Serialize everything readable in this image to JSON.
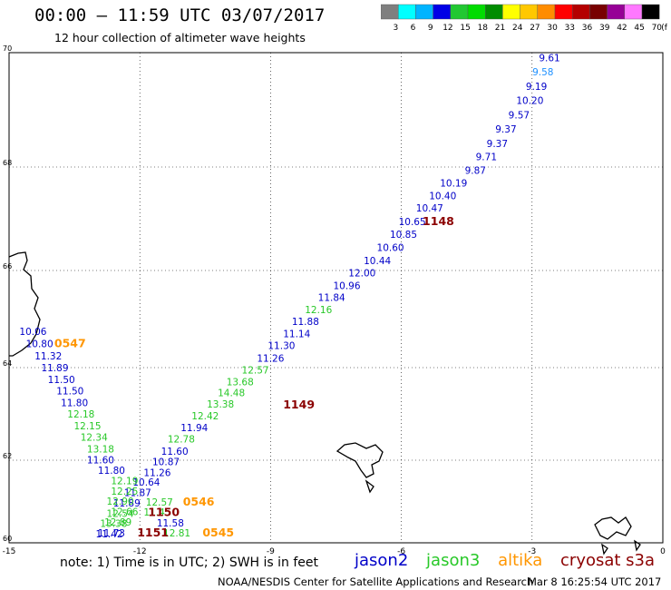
{
  "header": {
    "title": "00:00 – 11:59 UTC 03/07/2017",
    "subtitle": "12 hour collection of altimeter wave heights"
  },
  "color_scale": {
    "labels": [
      "3",
      "6",
      "9",
      "12",
      "15",
      "18",
      "21",
      "24",
      "27",
      "30",
      "33",
      "36",
      "39",
      "42",
      "45",
      "70"
    ],
    "unit": "(ft)",
    "colors": [
      "#7f7f7f",
      "#00ffff",
      "#00b4ff",
      "#0000e6",
      "#22c832",
      "#00dc00",
      "#008c00",
      "#ffff00",
      "#ffc800",
      "#ff8c00",
      "#ff0000",
      "#b40000",
      "#780000",
      "#960096",
      "#ff78ff",
      "#000000"
    ]
  },
  "map": {
    "lon_min": -15,
    "lon_max": 0,
    "lat_min": 60,
    "lat_max": 70,
    "lon_ticks": [
      "-15",
      "-12",
      "-9",
      "-6",
      "-3",
      "0"
    ],
    "lat_ticks": [
      "60",
      "62",
      "64",
      "66",
      "68",
      "70"
    ],
    "series_colors": {
      "jason2": "#0000c8",
      "jason3": "#28c828",
      "altika": "#ff9600",
      "cryosat": "#8b0000",
      "light": "#1e90ff"
    },
    "tracks": [
      {
        "satellite": "jason2",
        "labels": [
          {
            "text": "9.61",
            "lon": -2.6,
            "lat": 69.85,
            "c": "jason2"
          },
          {
            "text": "9.58",
            "lon": -2.75,
            "lat": 69.6,
            "c": "light"
          },
          {
            "text": "9.19",
            "lon": -2.9,
            "lat": 69.35,
            "c": "jason2"
          },
          {
            "text": "10.20",
            "lon": -3.05,
            "lat": 69.1,
            "c": "jason2"
          },
          {
            "text": "9.57",
            "lon": -3.3,
            "lat": 68.85,
            "c": "jason2"
          },
          {
            "text": "9.37",
            "lon": -3.6,
            "lat": 68.6,
            "c": "jason2"
          },
          {
            "text": "9.37",
            "lon": -3.8,
            "lat": 68.35,
            "c": "jason2"
          },
          {
            "text": "9.71",
            "lon": -4.05,
            "lat": 68.12,
            "c": "jason2"
          },
          {
            "text": "9.87",
            "lon": -4.3,
            "lat": 67.87,
            "c": "jason2"
          },
          {
            "text": "10.19",
            "lon": -4.8,
            "lat": 67.62,
            "c": "jason2"
          },
          {
            "text": "10.40",
            "lon": -5.05,
            "lat": 67.38,
            "c": "jason2"
          },
          {
            "text": "10.47",
            "lon": -5.35,
            "lat": 67.14,
            "c": "jason2"
          },
          {
            "text": "10.65",
            "lon": -5.75,
            "lat": 66.88,
            "c": "jason2"
          },
          {
            "text": "10.85",
            "lon": -5.95,
            "lat": 66.63,
            "c": "jason2"
          },
          {
            "text": "10.60",
            "lon": -6.25,
            "lat": 66.38,
            "c": "jason2"
          },
          {
            "text": "10.44",
            "lon": -6.55,
            "lat": 66.12,
            "c": "jason2"
          },
          {
            "text": "12.00",
            "lon": -6.9,
            "lat": 65.88,
            "c": "jason2"
          },
          {
            "text": "10.96",
            "lon": -7.25,
            "lat": 65.62,
            "c": "jason2"
          },
          {
            "text": "11.84",
            "lon": -7.6,
            "lat": 65.37,
            "c": "jason2"
          },
          {
            "text": "12.16",
            "lon": -7.9,
            "lat": 65.12,
            "c": "jason3"
          },
          {
            "text": "11.88",
            "lon": -8.2,
            "lat": 64.88,
            "c": "jason2"
          },
          {
            "text": "11.14",
            "lon": -8.4,
            "lat": 64.63,
            "c": "jason2"
          },
          {
            "text": "11.30",
            "lon": -8.75,
            "lat": 64.38,
            "c": "jason2"
          },
          {
            "text": "11.26",
            "lon": -9.0,
            "lat": 64.12,
            "c": "jason2"
          },
          {
            "text": "12.57",
            "lon": -9.35,
            "lat": 63.87,
            "c": "jason3"
          },
          {
            "text": "13.68",
            "lon": -9.7,
            "lat": 63.62,
            "c": "jason3"
          },
          {
            "text": "14.48",
            "lon": -9.9,
            "lat": 63.38,
            "c": "jason3"
          },
          {
            "text": "13.38",
            "lon": -10.15,
            "lat": 63.14,
            "c": "jason3"
          },
          {
            "text": "12.42",
            "lon": -10.5,
            "lat": 62.88,
            "c": "jason3"
          },
          {
            "text": "11.94",
            "lon": -10.75,
            "lat": 62.63,
            "c": "jason2"
          },
          {
            "text": "12.78",
            "lon": -11.05,
            "lat": 62.38,
            "c": "jason3"
          },
          {
            "text": "11.60",
            "lon": -11.2,
            "lat": 62.12,
            "c": "jason2"
          },
          {
            "text": "10.87",
            "lon": -11.4,
            "lat": 61.88,
            "c": "jason2"
          },
          {
            "text": "11.26",
            "lon": -11.6,
            "lat": 61.62,
            "c": "jason2"
          },
          {
            "text": "10.64",
            "lon": -11.85,
            "lat": 61.38,
            "c": "jason2"
          },
          {
            "text": "11.87",
            "lon": -12.05,
            "lat": 61.13,
            "c": "jason2"
          },
          {
            "text": "11.89",
            "lon": -12.3,
            "lat": 60.88,
            "c": "jason2"
          },
          {
            "text": "12.54",
            "lon": -12.45,
            "lat": 60.63,
            "c": "jason3"
          },
          {
            "text": "13.38",
            "lon": -12.6,
            "lat": 60.38,
            "c": "jason3"
          },
          {
            "text": "11.42",
            "lon": -12.7,
            "lat": 60.13,
            "c": "jason2"
          }
        ]
      },
      {
        "satellite": "jason2",
        "labels": [
          {
            "text": "10.06",
            "lon": -14.45,
            "lat": 64.67,
            "c": "jason2"
          },
          {
            "text": "10.80",
            "lon": -14.3,
            "lat": 64.42,
            "c": "jason2"
          },
          {
            "text": "11.32",
            "lon": -14.1,
            "lat": 64.17,
            "c": "jason2"
          },
          {
            "text": "11.89",
            "lon": -13.95,
            "lat": 63.92,
            "c": "jason2"
          },
          {
            "text": "11.50",
            "lon": -13.8,
            "lat": 63.67,
            "c": "jason2"
          },
          {
            "text": "11.50",
            "lon": -13.6,
            "lat": 63.42,
            "c": "jason2"
          },
          {
            "text": "11.80",
            "lon": -13.5,
            "lat": 63.17,
            "c": "jason2"
          },
          {
            "text": "12.18",
            "lon": -13.35,
            "lat": 62.92,
            "c": "jason3"
          },
          {
            "text": "12.15",
            "lon": -13.2,
            "lat": 62.67,
            "c": "jason3"
          },
          {
            "text": "12.34",
            "lon": -13.05,
            "lat": 62.42,
            "c": "jason3"
          },
          {
            "text": "13.18",
            "lon": -12.9,
            "lat": 62.17,
            "c": "jason3"
          },
          {
            "text": "11.60",
            "lon": -12.9,
            "lat": 61.92,
            "c": "jason2"
          },
          {
            "text": "11.80",
            "lon": -12.65,
            "lat": 61.67,
            "c": "jason2"
          },
          {
            "text": "12.19",
            "lon": -12.35,
            "lat": 61.42,
            "c": "jason3"
          },
          {
            "text": "12.25",
            "lon": -12.35,
            "lat": 61.17,
            "c": "jason3"
          },
          {
            "text": "12.90",
            "lon": -12.45,
            "lat": 60.92,
            "c": "jason3"
          },
          {
            "text": "12.66",
            "lon": -12.35,
            "lat": 60.67,
            "c": "jason3"
          },
          {
            "text": "12.89",
            "lon": -12.5,
            "lat": 60.42,
            "c": "jason3"
          },
          {
            "text": "11.73",
            "lon": -12.65,
            "lat": 60.15,
            "c": "jason2"
          }
        ]
      },
      {
        "satellite": "mixed",
        "labels": [
          {
            "text": "12.57",
            "lon": -11.55,
            "lat": 60.9,
            "c": "jason3"
          },
          {
            "text": "12.81",
            "lon": -11.15,
            "lat": 60.15,
            "c": "jason3"
          },
          {
            "text": "11.58",
            "lon": -11.3,
            "lat": 60.4,
            "c": "jason2"
          },
          {
            "text": "11.45",
            "lon": -11.6,
            "lat": 60.66,
            "c": "jason3"
          }
        ]
      }
    ],
    "time_labels": [
      {
        "text": "1148",
        "lon": -5.15,
        "lat": 66.88,
        "c": "cryosat"
      },
      {
        "text": "1149",
        "lon": -8.35,
        "lat": 63.12,
        "c": "cryosat"
      },
      {
        "text": "1150",
        "lon": -11.45,
        "lat": 60.65,
        "c": "cryosat"
      },
      {
        "text": "1151",
        "lon": -11.7,
        "lat": 60.15,
        "c": "cryosat"
      },
      {
        "text": "0547",
        "lon": -13.6,
        "lat": 64.42,
        "c": "altika"
      },
      {
        "text": "0546",
        "lon": -10.65,
        "lat": 60.9,
        "c": "altika"
      },
      {
        "text": "0545",
        "lon": -10.2,
        "lat": 60.15,
        "c": "altika"
      }
    ]
  },
  "footer": {
    "note": "note: 1) Time is in UTC; 2) SWH is in feet",
    "legend": [
      {
        "name": "jason2",
        "color": "#0000c8"
      },
      {
        "name": "jason3",
        "color": "#28c828"
      },
      {
        "name": "altika",
        "color": "#ff9600"
      },
      {
        "name": "cryosat s3a",
        "color": "#8b0000"
      }
    ],
    "credit": "NOAA/NESDIS Center for Satellite Applications and Research",
    "timestamp": "Mar  8 16:25:54 UTC 2017"
  }
}
